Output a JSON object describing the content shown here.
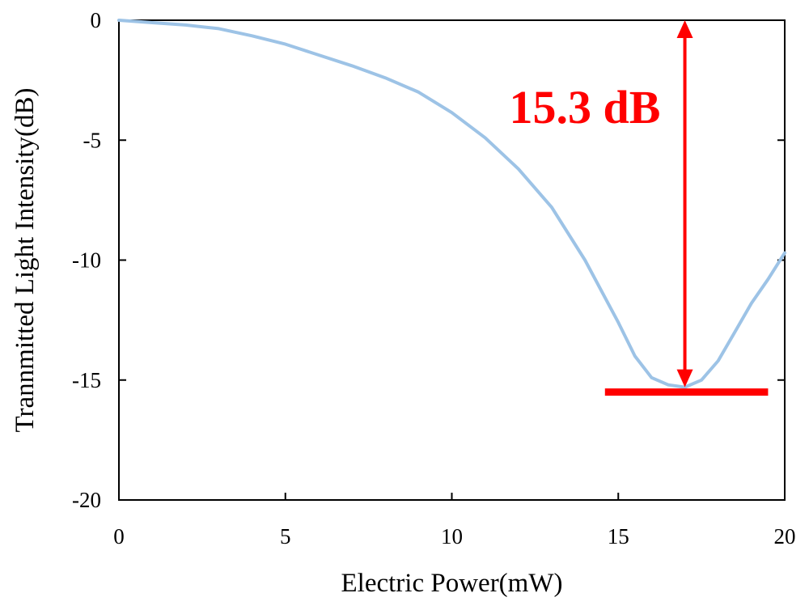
{
  "chart_data": {
    "type": "line",
    "xlabel": "Electric Power(mW)",
    "ylabel": "Trannmitted Light Intensity(dB)",
    "xlim": [
      0,
      20
    ],
    "ylim": [
      -20,
      0
    ],
    "x_ticks": [
      0,
      5,
      10,
      15,
      20
    ],
    "y_ticks": [
      0,
      -5,
      -10,
      -15,
      -20
    ],
    "grid": false,
    "series": [
      {
        "color": "#9dc3e6",
        "x": [
          0,
          1,
          2,
          3,
          4,
          5,
          6,
          7,
          8,
          9,
          10,
          11,
          12,
          13,
          14,
          15,
          15.5,
          16,
          16.5,
          17,
          17.5,
          18,
          18.5,
          19,
          19.5,
          20
        ],
        "y": [
          0,
          -0.1,
          -0.2,
          -0.35,
          -0.65,
          -1.0,
          -1.45,
          -1.9,
          -2.4,
          -3.0,
          -3.85,
          -4.9,
          -6.2,
          -7.8,
          -10.0,
          -12.6,
          -14.0,
          -14.9,
          -15.2,
          -15.3,
          -15.0,
          -14.2,
          -13.0,
          -11.8,
          -10.8,
          -9.7
        ]
      }
    ],
    "annotations": [
      {
        "text": "15.3 dB",
        "color": "#ff0000",
        "arrow_x": 17,
        "arrow_y_from": 0,
        "arrow_y_to": -15.3,
        "baseline_x": [
          14.6,
          19.5
        ],
        "baseline_y": -15.5
      }
    ]
  }
}
